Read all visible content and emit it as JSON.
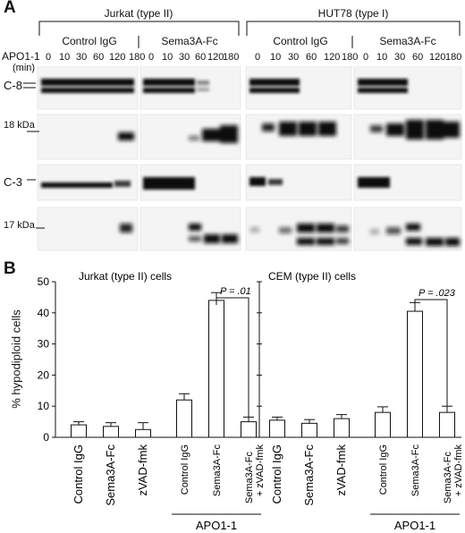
{
  "panelA": {
    "letter": "A",
    "groups": [
      {
        "name": "Jurkat (type II)",
        "subgroups": [
          "Control IgG",
          "Sema3A-Fc"
        ]
      },
      {
        "name": "HUT78 (type I)",
        "subgroups": [
          "Control IgG",
          "Sema3A-Fc"
        ]
      }
    ],
    "treatment_label": "APO1-1",
    "time_unit": "(min)",
    "timepoints": [
      "0",
      "10",
      "30",
      "60",
      "120",
      "180"
    ],
    "row_labels": [
      "C-8",
      "18 kDa",
      "C-3",
      "17 kDa"
    ]
  },
  "panelB": {
    "letter": "B",
    "ylabel": "% hypodiploid cells",
    "yticks": [
      "0",
      "10",
      "20",
      "30",
      "40",
      "50"
    ],
    "treatment_label": "APO1-1",
    "chart_data": [
      {
        "type": "bar",
        "title": "Jurkat (type II) cells",
        "categories": [
          "Control IgG",
          "Sema3A-Fc",
          "zVAD-fmk",
          "Control IgG",
          "Sema3A-Fc",
          "Sema3A-Fc + zVAD-fmk"
        ],
        "values": [
          4,
          3.5,
          2.5,
          12,
          44,
          5
        ],
        "errors": [
          1,
          1.2,
          2.2,
          2,
          2.5,
          1.5
        ],
        "ylim": [
          0,
          50
        ],
        "annotation": "P = .01"
      },
      {
        "type": "bar",
        "title": "CEM (type II) cells",
        "categories": [
          "Control IgG",
          "Sema3A-Fc",
          "zVAD-fmk",
          "Control IgG",
          "Sema3A-Fc",
          "Sema3A-Fc + zVAD-fmk"
        ],
        "values": [
          5.5,
          4.5,
          6,
          8,
          40.5,
          8
        ],
        "errors": [
          1,
          1.2,
          1.3,
          1.8,
          2.8,
          2
        ],
        "ylim": [
          0,
          50
        ],
        "annotation": "P = .023"
      }
    ]
  }
}
